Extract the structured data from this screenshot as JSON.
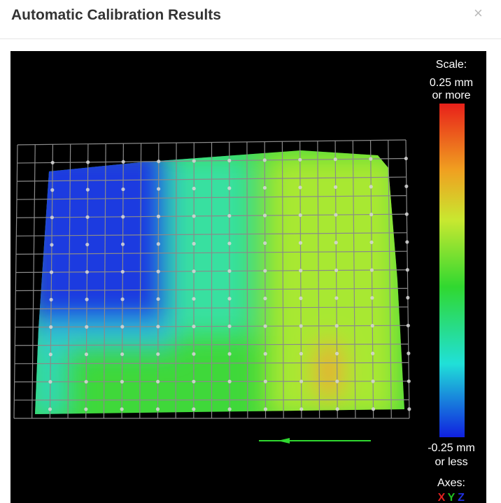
{
  "header": {
    "title": "Automatic Calibration Results",
    "close": "×"
  },
  "scale": {
    "label": "Scale:",
    "max_line1": "0.25 mm",
    "max_line2": "or more",
    "min_line1": "-0.25 mm",
    "min_line2": "or less"
  },
  "axes": {
    "label": "Axes:",
    "x": "X",
    "y": "Y",
    "z": "Z"
  }
}
